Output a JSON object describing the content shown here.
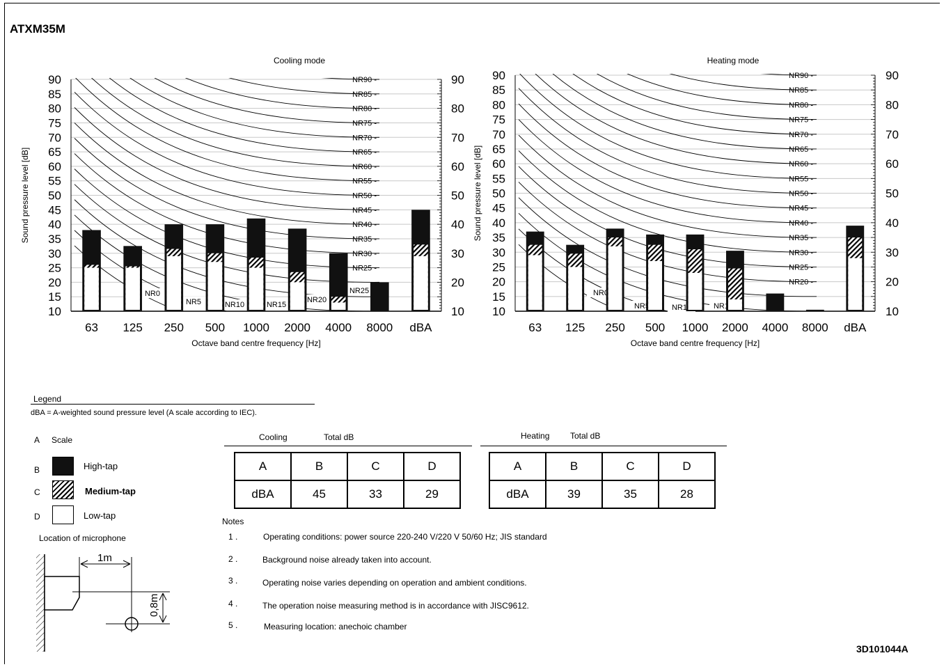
{
  "model": "ATXM35M",
  "doc_code": "3D101044A",
  "chart_data": [
    {
      "type": "bar",
      "title": "Cooling mode",
      "xlabel": "Octave band centre frequency [Hz]",
      "ylabel": "Sound pressure level [dB]",
      "ylim": [
        10,
        90
      ],
      "yticks_left": [
        "10",
        "15",
        "20",
        "25",
        "30",
        "35",
        "40",
        "45",
        "50",
        "55",
        "60",
        "65",
        "70",
        "75",
        "80",
        "85",
        "90"
      ],
      "yticks_right": [
        "10",
        "20",
        "30",
        "40",
        "50",
        "60",
        "70",
        "80",
        "90"
      ],
      "categories": [
        "63",
        "125",
        "250",
        "500",
        "1000",
        "2000",
        "4000",
        "8000",
        "dBA"
      ],
      "series": [
        {
          "name": "High-tap",
          "values": [
            38,
            32.5,
            40,
            40,
            42,
            38.5,
            30,
            20,
            45
          ]
        },
        {
          "name": "Medium-tap",
          "values": [
            26,
            25.5,
            31.5,
            30,
            28.5,
            23.5,
            15,
            0,
            33
          ]
        },
        {
          "name": "Low-tap",
          "values": [
            25,
            25,
            29,
            27,
            25,
            20,
            13,
            0,
            29
          ]
        }
      ],
      "nr_curve_labels": [
        "NR90",
        "NR85",
        "NR80",
        "NR75",
        "NR70",
        "NR65",
        "NR60",
        "NR55",
        "NR50",
        "NR45",
        "NR40",
        "NR35",
        "NR30",
        "NR25",
        "NR20",
        "NR15",
        "NR10",
        "NR5",
        "NR0"
      ]
    },
    {
      "type": "bar",
      "title": "Heating mode",
      "xlabel": "Octave band centre frequency [Hz]",
      "ylabel": "Sound pressure level [dB]",
      "ylim": [
        10,
        90
      ],
      "yticks_left": [
        "10",
        "15",
        "20",
        "25",
        "30",
        "35",
        "40",
        "45",
        "50",
        "55",
        "60",
        "65",
        "70",
        "75",
        "80",
        "85",
        "90"
      ],
      "yticks_right": [
        "10",
        "20",
        "30",
        "40",
        "50",
        "60",
        "70",
        "80",
        "90"
      ],
      "categories": [
        "63",
        "125",
        "250",
        "500",
        "1000",
        "2000",
        "4000",
        "8000",
        "dBA"
      ],
      "series": [
        {
          "name": "High-tap",
          "values": [
            37,
            32.5,
            38,
            36,
            36,
            30.5,
            16,
            10.5,
            39
          ]
        },
        {
          "name": "Medium-tap",
          "values": [
            32.5,
            29.5,
            35,
            32.5,
            31,
            24.5,
            0,
            0,
            35
          ]
        },
        {
          "name": "Low-tap",
          "values": [
            29,
            25,
            32,
            27,
            23,
            14,
            0,
            0,
            28
          ]
        }
      ],
      "nr_curve_labels": [
        "NR90",
        "NR85",
        "NR80",
        "NR75",
        "NR70",
        "NR65",
        "NR60",
        "NR55",
        "NR50",
        "NR45",
        "NR40",
        "NR35",
        "NR30",
        "NR25",
        "NR20",
        "NR15",
        "NR10",
        "NR5",
        "NR0"
      ]
    }
  ],
  "legend": {
    "title": "Legend",
    "description": "dBA = A-weighted sound pressure level (A scale according to IEC).",
    "items": [
      {
        "letter": "A",
        "label": "Scale"
      },
      {
        "letter": "B",
        "label": "High-tap"
      },
      {
        "letter": "C",
        "label": "Medium-tap"
      },
      {
        "letter": "D",
        "label": "Low-tap"
      }
    ],
    "microphone_title": "Location of microphone",
    "mic_distance": "1m",
    "mic_height": "0,8m"
  },
  "totals": {
    "cooling": {
      "mode": "Cooling",
      "header": "Total dB",
      "columns": [
        "A",
        "B",
        "C",
        "D"
      ],
      "values": [
        "dBA",
        "45",
        "33",
        "29"
      ]
    },
    "heating": {
      "mode": "Heating",
      "header": "Total dB",
      "columns": [
        "A",
        "B",
        "C",
        "D"
      ],
      "values": [
        "dBA",
        "39",
        "35",
        "28"
      ]
    }
  },
  "notes": {
    "title": "Notes",
    "items": [
      {
        "num": "1 .",
        "text": "Operating conditions: power source 220-240 V/220 V 50/60 Hz; JIS standard"
      },
      {
        "num": "2 .",
        "text": "Background noise already taken into account."
      },
      {
        "num": "3 .",
        "text": "Operating noise varies depending on operation and ambient conditions."
      },
      {
        "num": "4 .",
        "text": "The operation noise measuring method is in accordance with JISC9612."
      },
      {
        "num": "5 .",
        "text": "Measuring location: anechoic chamber"
      }
    ]
  }
}
